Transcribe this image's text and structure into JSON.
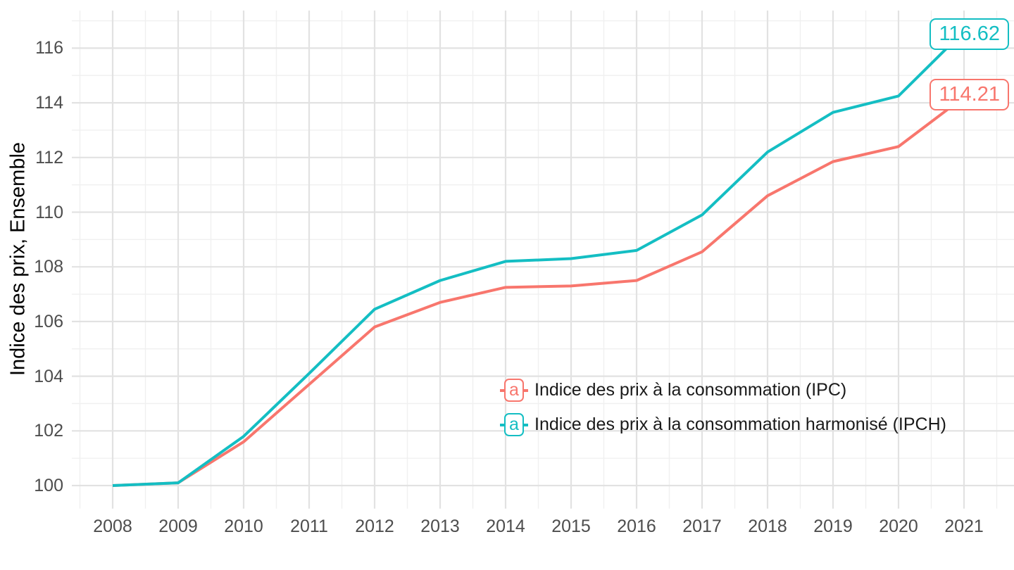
{
  "chart_data": {
    "type": "line",
    "title": "",
    "xlabel": "",
    "ylabel": "Indice des prix, Ensemble",
    "x": [
      2008,
      2009,
      2010,
      2011,
      2012,
      2013,
      2014,
      2015,
      2016,
      2017,
      2018,
      2019,
      2020,
      2021
    ],
    "xtick_labels": [
      "2008",
      "2009",
      "2010",
      "2011",
      "2012",
      "2013",
      "2014",
      "2015",
      "2016",
      "2017",
      "2018",
      "2019",
      "2020",
      "2021"
    ],
    "yticks": [
      100,
      102,
      104,
      106,
      108,
      110,
      112,
      114,
      116
    ],
    "ytick_labels": [
      "100",
      "102",
      "104",
      "106",
      "108",
      "110",
      "112",
      "114",
      "116"
    ],
    "ylim": [
      99.2,
      117.4
    ],
    "xlim": [
      2007.4,
      2021.8
    ],
    "grid": {
      "major": true,
      "minor": true
    },
    "legend_position": "inside-bottom-right",
    "legend_key_glyph": "a",
    "series": [
      {
        "id": "ipc",
        "name": "Indice des prix à la consommation (IPC)",
        "color": "#F8766D",
        "values": [
          100,
          100.1,
          101.6,
          103.7,
          105.8,
          106.7,
          107.25,
          107.3,
          107.5,
          108.55,
          110.6,
          111.85,
          112.4,
          114.21
        ],
        "end_label": "114.21"
      },
      {
        "id": "ipch",
        "name": "Indice des prix à la consommation harmonisé (IPCH)",
        "color": "#14BEC3",
        "values": [
          100,
          100.1,
          101.8,
          104.1,
          106.45,
          107.5,
          108.2,
          108.3,
          108.6,
          109.9,
          112.2,
          113.65,
          114.25,
          116.62
        ],
        "end_label": "116.62"
      }
    ]
  },
  "colors": {
    "background": "#FFFFFF",
    "grid_major": "#E2E2E2",
    "grid_minor": "#F0F0F0",
    "tick_label": "#4D4D4D",
    "axis_title": "#000000",
    "legend_text": "#1A1A1A"
  }
}
